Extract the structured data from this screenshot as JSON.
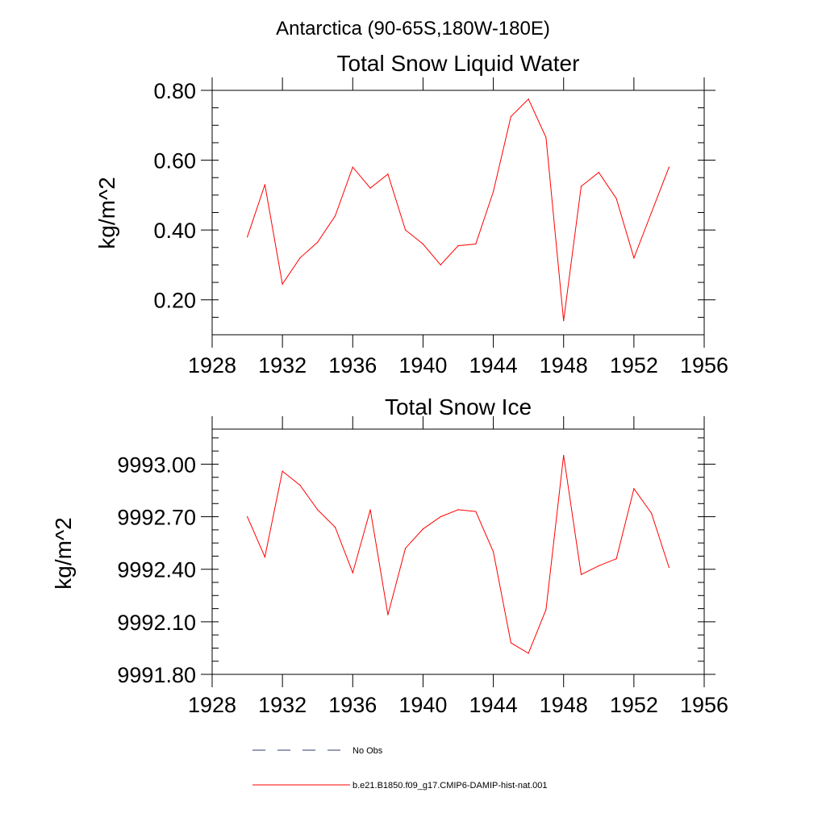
{
  "figure": {
    "title": "Antarctica (90-65S,180W-180E)"
  },
  "legend": {
    "items": [
      {
        "label": "No Obs",
        "style": "dashed",
        "color": "#2f3a6b"
      },
      {
        "label": "b.e21.B1850.f09_g17.CMIP6-DAMIP-hist-nat.001",
        "style": "solid",
        "color": "#ff0000"
      }
    ]
  },
  "chart_data": [
    {
      "type": "line",
      "title": "Total Snow Liquid Water",
      "xlabel": "",
      "ylabel": "kg/m^2",
      "xlim": [
        1928,
        1956
      ],
      "ylim": [
        0.1,
        0.8
      ],
      "x_ticks": [
        1928,
        1932,
        1936,
        1940,
        1944,
        1948,
        1952,
        1956
      ],
      "x_tick_labels": [
        "1928",
        "1932",
        "1936",
        "1940",
        "1944",
        "1948",
        "1952",
        "1956"
      ],
      "y_ticks": [
        0.2,
        0.4,
        0.6,
        0.8
      ],
      "y_tick_labels": [
        "0.20",
        "0.40",
        "0.60",
        "0.80"
      ],
      "grid": false,
      "series": [
        {
          "color": "#ff0000",
          "x": [
            1930,
            1931,
            1932,
            1933,
            1934,
            1935,
            1936,
            1937,
            1938,
            1939,
            1940,
            1941,
            1942,
            1943,
            1944,
            1945,
            1946,
            1947,
            1948,
            1949,
            1950,
            1951,
            1952,
            1953,
            1954
          ],
          "values": [
            0.38,
            0.53,
            0.245,
            0.32,
            0.365,
            0.44,
            0.58,
            0.52,
            0.56,
            0.4,
            0.36,
            0.3,
            0.355,
            0.36,
            0.51,
            0.725,
            0.775,
            0.665,
            0.14,
            0.525,
            0.565,
            0.49,
            0.32,
            0.45,
            0.58
          ]
        }
      ]
    },
    {
      "type": "line",
      "title": "Total Snow Ice",
      "xlabel": "",
      "ylabel": "kg/m^2",
      "xlim": [
        1928,
        1956
      ],
      "ylim": [
        9991.8,
        9993.2
      ],
      "x_ticks": [
        1928,
        1932,
        1936,
        1940,
        1944,
        1948,
        1952,
        1956
      ],
      "x_tick_labels": [
        "1928",
        "1932",
        "1936",
        "1940",
        "1944",
        "1948",
        "1952",
        "1956"
      ],
      "y_ticks": [
        9991.8,
        9992.1,
        9992.4,
        9992.7,
        9993.0
      ],
      "y_tick_labels": [
        "9991.80",
        "9992.10",
        "9992.40",
        "9992.70",
        "9993.00"
      ],
      "grid": false,
      "series": [
        {
          "color": "#ff0000",
          "x": [
            1930,
            1931,
            1932,
            1933,
            1934,
            1935,
            1936,
            1937,
            1938,
            1939,
            1940,
            1941,
            1942,
            1943,
            1944,
            1945,
            1946,
            1947,
            1948,
            1949,
            1950,
            1951,
            1952,
            1953,
            1954
          ],
          "values": [
            9992.7,
            9992.47,
            9992.96,
            9992.88,
            9992.74,
            9992.64,
            9992.38,
            9992.74,
            9992.14,
            9992.52,
            9992.63,
            9992.7,
            9992.74,
            9992.73,
            9992.5,
            9991.98,
            9991.92,
            9992.17,
            9993.05,
            9992.37,
            9992.42,
            9992.46,
            9992.86,
            9992.72,
            9992.41
          ]
        }
      ]
    }
  ]
}
